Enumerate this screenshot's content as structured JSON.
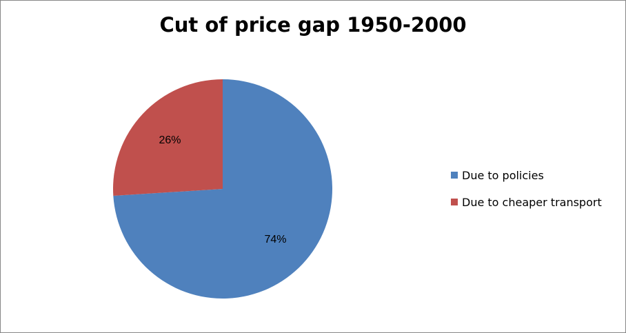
{
  "chart_data": {
    "type": "pie",
    "title": "Cut of price gap 1950-2000",
    "categories": [
      "Due to policies",
      "Due to cheaper transport"
    ],
    "values": [
      74,
      26
    ],
    "value_labels": [
      "74%",
      "26%"
    ],
    "colors": [
      "#4f81bd",
      "#c0504d"
    ],
    "legend_position": "right"
  }
}
